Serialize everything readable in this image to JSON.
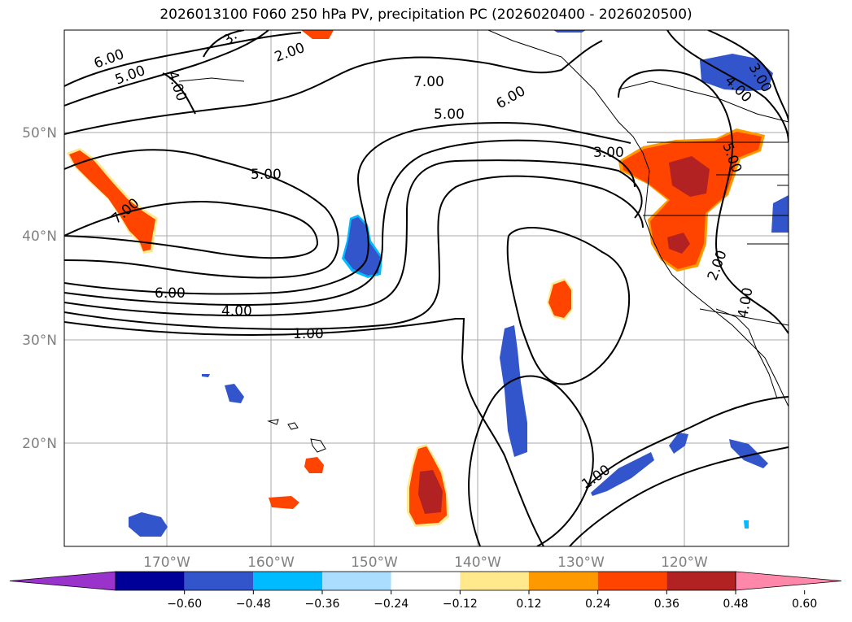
{
  "title": "2026013100 F060 250 hPa PV, precipitation PC (2026020400 - 2026020500)",
  "lat_labels": [
    "50°N",
    "40°N",
    "30°N",
    "20°N"
  ],
  "lon_labels": [
    "170°W",
    "160°W",
    "150°W",
    "140°W",
    "130°W",
    "120°W"
  ],
  "contour_labels": [
    "6.00",
    "5.00",
    "4.00",
    "3.",
    "2.00",
    "7.00",
    "6.00",
    "5.00",
    "3.00",
    "5.00",
    "5.00",
    "4.00",
    "3.00",
    "7.00",
    "6.00",
    "4.00",
    "1.00",
    "2.00",
    "4.00",
    "1.00"
  ],
  "colorbar": {
    "colors": [
      "#9933cc",
      "#000099",
      "#3355cc",
      "#00bbff",
      "#aaddff",
      "#ffffff",
      "#ffe98c",
      "#ff9900",
      "#ff4400",
      "#b22222",
      "#ff88aa"
    ],
    "ticks": [
      "−0.60",
      "−0.48",
      "−0.36",
      "−0.24",
      "−0.12",
      "0.12",
      "0.24",
      "0.36",
      "0.48",
      "0.60"
    ]
  },
  "colors": {
    "red": "#ff4400",
    "orange": "#ff9900",
    "yellow": "#ffe98c",
    "darkred": "#b22222",
    "blue": "#3355cc",
    "lightblue": "#00bbff"
  }
}
